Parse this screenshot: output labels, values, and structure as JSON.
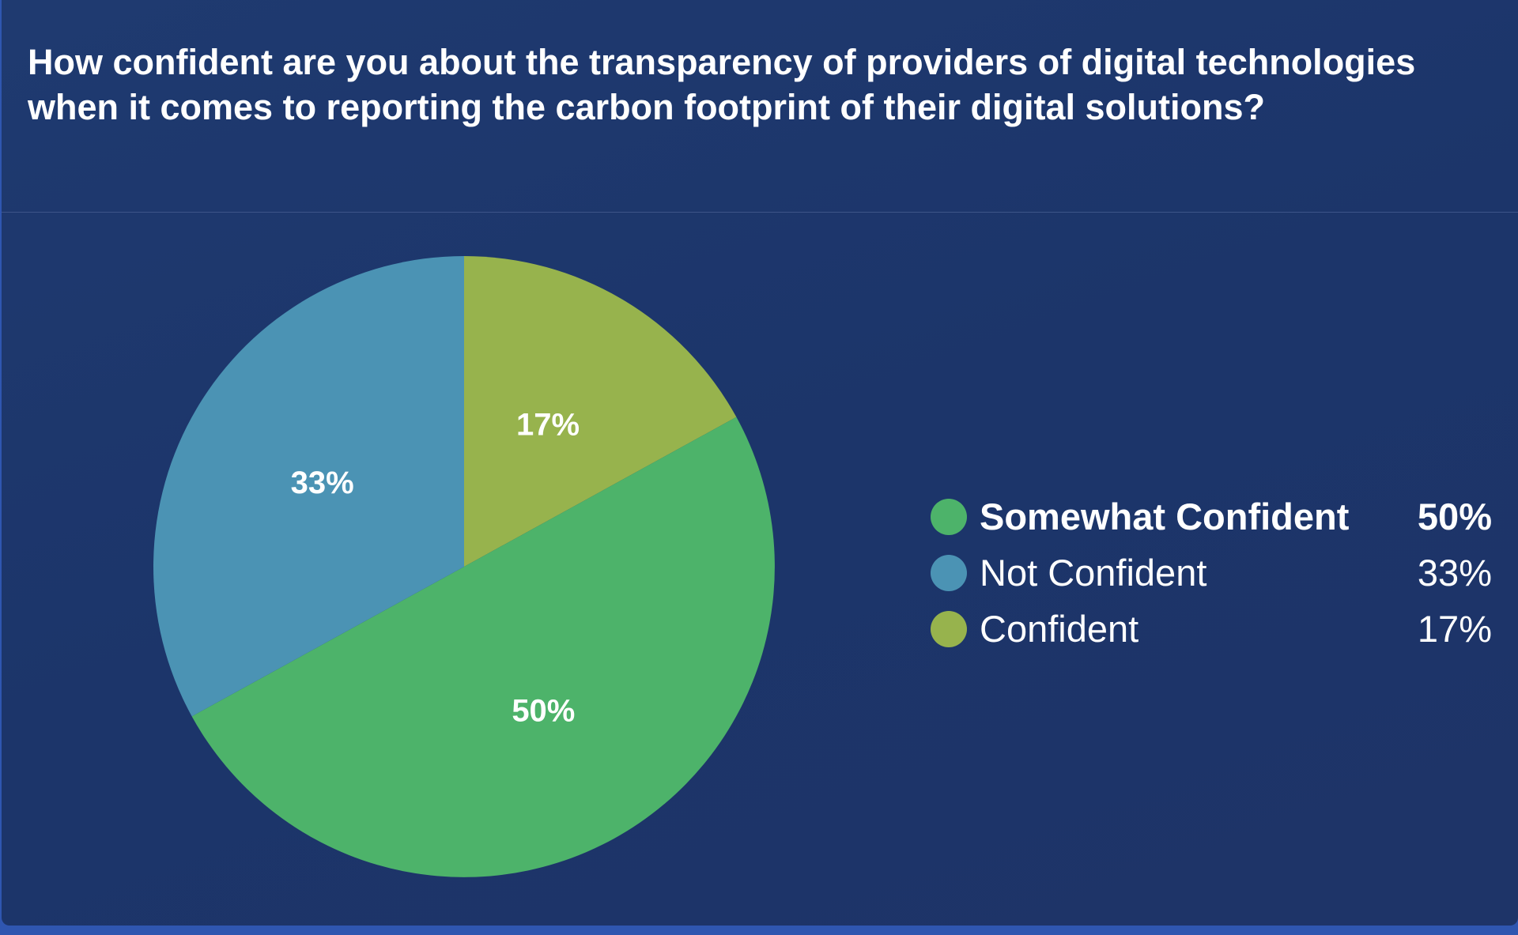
{
  "chart_data": {
    "type": "pie",
    "title": "How confident are you about the transparency of providers of digital technologies when it comes to reporting the carbon footprint of their digital solutions?",
    "slices": [
      {
        "label": "Confident",
        "value": 17,
        "display": "17%",
        "color": "#97b34d"
      },
      {
        "label": "Somewhat Confident",
        "value": 50,
        "display": "50%",
        "color": "#4db36a"
      },
      {
        "label": "Not Confident",
        "value": 33,
        "display": "33%",
        "color": "#4b93b4"
      }
    ],
    "start_angle": "top",
    "direction": "clockwise",
    "legend_position": "right",
    "legend": [
      {
        "label": "Somewhat Confident",
        "value": "50%",
        "color": "#4db36a",
        "highlighted": true
      },
      {
        "label": "Not Confident",
        "value": "33%",
        "color": "#4b93b4",
        "highlighted": false
      },
      {
        "label": "Confident",
        "value": "17%",
        "color": "#97b34d",
        "highlighted": false
      }
    ]
  }
}
